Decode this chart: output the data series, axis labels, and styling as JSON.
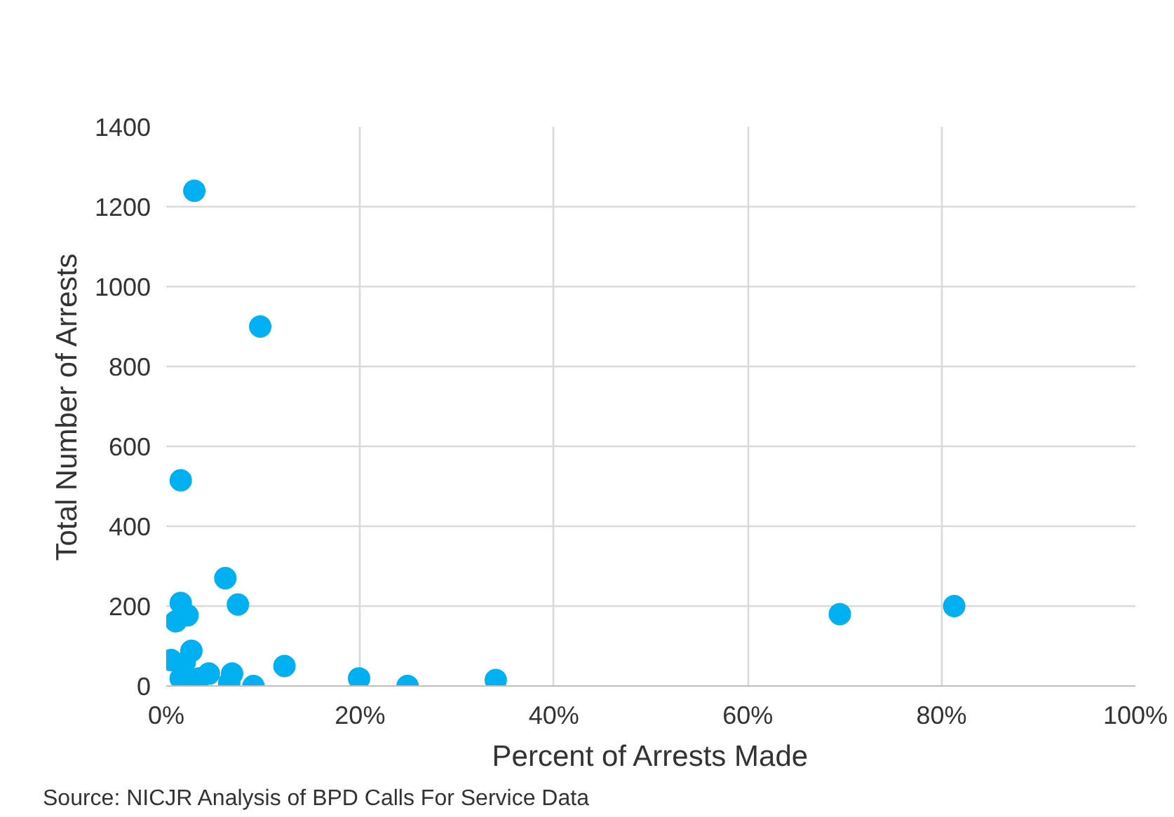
{
  "chart_data": {
    "type": "scatter",
    "xlabel": "Percent of Arrests Made",
    "ylabel": "Total Number of Arrests",
    "annotations": [
      "Source: NICJR Analysis of BPD Calls For Service Data"
    ],
    "x": [
      2.9,
      9.7,
      1.5,
      6.1,
      7.4,
      1.5,
      2.2,
      12.2,
      19.9,
      24.9,
      34.0,
      69.5,
      81.3,
      9.0,
      0.5,
      2.6,
      1.5,
      3.4,
      6.8,
      6.5,
      4.4,
      1.9,
      1.0
    ],
    "values": [
      1240,
      900,
      515,
      270,
      204,
      208,
      177,
      50,
      19,
      0,
      15,
      180,
      200,
      0,
      65,
      88,
      19,
      19,
      31,
      8,
      31,
      58,
      162
    ],
    "color": "#00b0f0",
    "marker": "circle",
    "grid": true,
    "xlim": [
      0,
      100
    ],
    "xticks": [
      {
        "value": 0,
        "label": "0%"
      },
      {
        "value": 20,
        "label": "20%"
      },
      {
        "value": 40,
        "label": "40%"
      },
      {
        "value": 60,
        "label": "60%"
      },
      {
        "value": 80,
        "label": "80%"
      },
      {
        "value": 100,
        "label": "100%"
      }
    ],
    "ylim": [
      0,
      1400
    ],
    "yticks": [
      0,
      200,
      400,
      600,
      800,
      1000,
      1200,
      1400
    ]
  }
}
